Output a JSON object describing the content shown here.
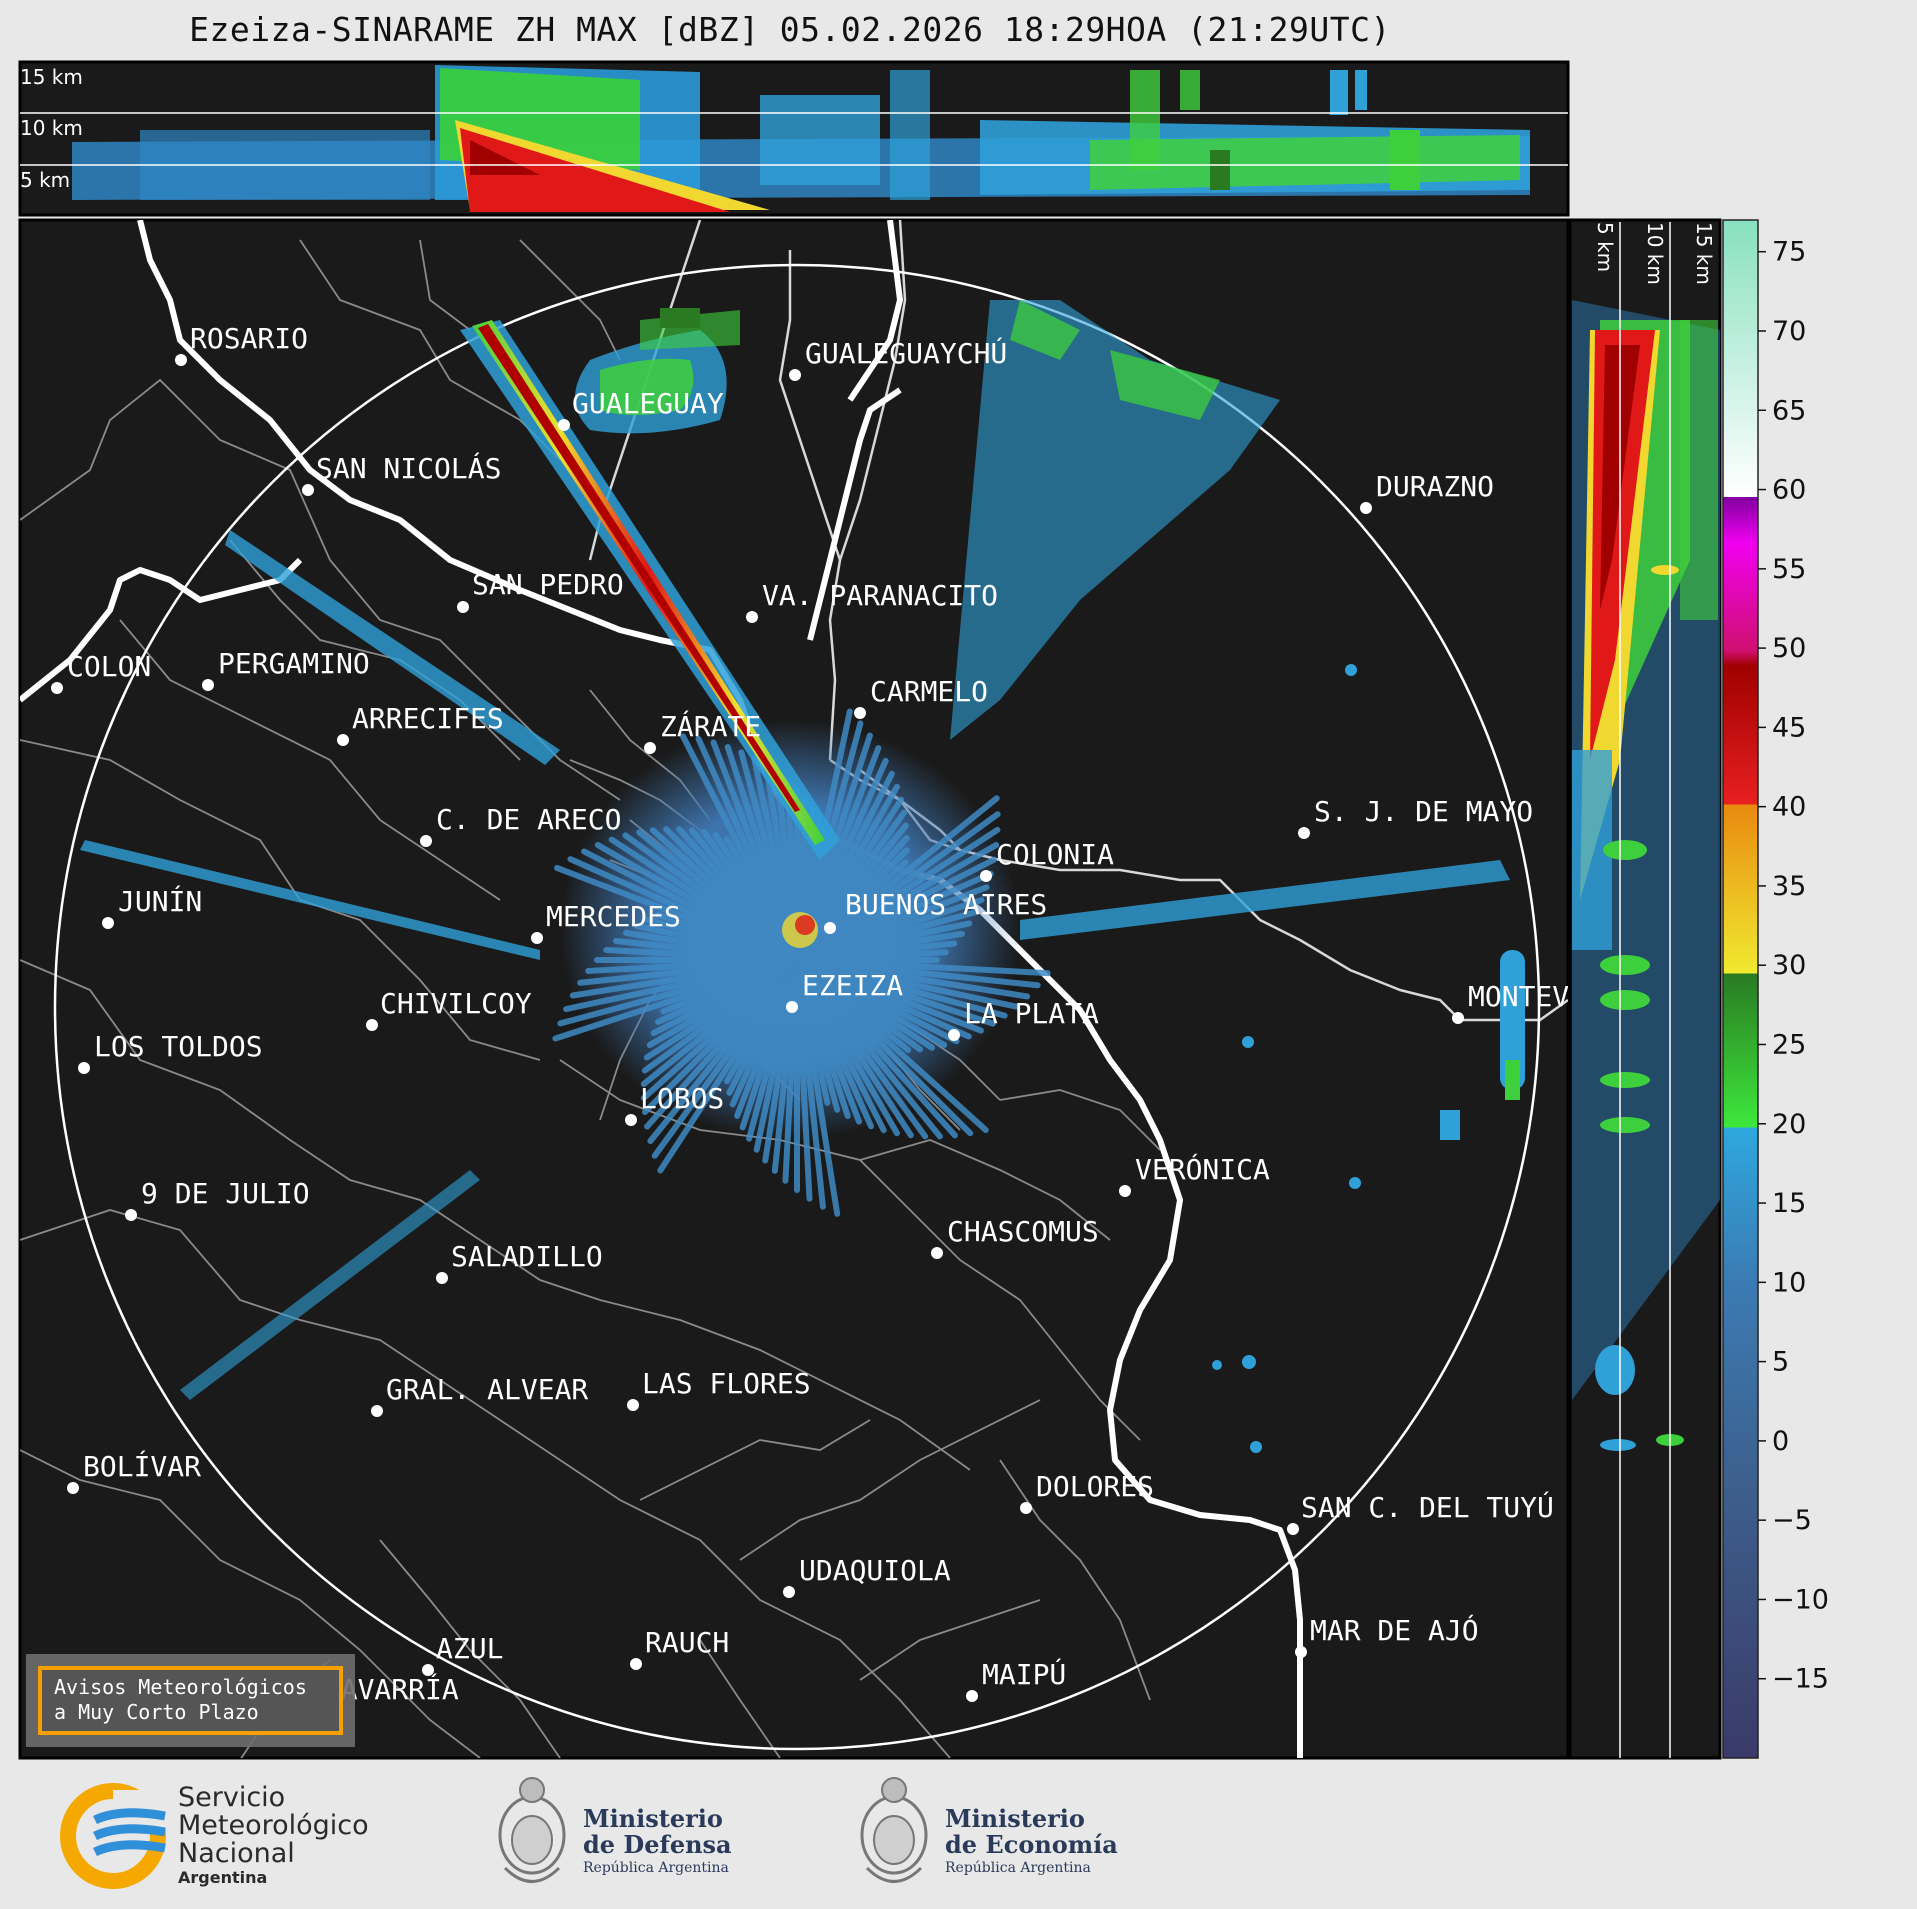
{
  "title": "Ezeiza-SINARAME ZH MAX [dBZ] 05.02.2026 18:29HOA (21:29UTC)",
  "top_panel": {
    "altitude_labels": [
      "15 km",
      "10 km",
      "5 km"
    ]
  },
  "side_panel": {
    "altitude_labels": [
      "5 km",
      "10 km",
      "15 km"
    ]
  },
  "colorbar": {
    "ticks": [
      "75",
      "70",
      "65",
      "60",
      "55",
      "50",
      "45",
      "40",
      "35",
      "30",
      "25",
      "20",
      "15",
      "10",
      "5",
      "0",
      "−5",
      "−10",
      "−15"
    ],
    "range": [
      -20,
      77
    ]
  },
  "map": {
    "radar_site": "EZEIZA",
    "cities": [
      {
        "name": "ROSARIO"
      },
      {
        "name": "GUALEGUAYCHÚ"
      },
      {
        "name": "GUALEGUAY"
      },
      {
        "name": "SAN NICOLÁS"
      },
      {
        "name": "DURAZNO"
      },
      {
        "name": "SAN PEDRO"
      },
      {
        "name": "VA. PARANACITO"
      },
      {
        "name": "COLON"
      },
      {
        "name": "PERGAMINO"
      },
      {
        "name": "CARMELO"
      },
      {
        "name": "ARRECIFES"
      },
      {
        "name": "ZÁRATE"
      },
      {
        "name": "S. J. DE MAYO"
      },
      {
        "name": "C. DE ARECO"
      },
      {
        "name": "COLONIA"
      },
      {
        "name": "JUNÍN"
      },
      {
        "name": "BUENOS AIRES"
      },
      {
        "name": "MERCEDES"
      },
      {
        "name": "MONTEVIDEO"
      },
      {
        "name": "EZEIZA"
      },
      {
        "name": "CHIVILCOY"
      },
      {
        "name": "LA PLATA"
      },
      {
        "name": "LOS TOLDOS"
      },
      {
        "name": "LOBOS"
      },
      {
        "name": "VERÓNICA"
      },
      {
        "name": "9 DE JULIO"
      },
      {
        "name": "CHASCOMUS"
      },
      {
        "name": "SALADILLO"
      },
      {
        "name": "GRAL. ALVEAR"
      },
      {
        "name": "LAS FLORES"
      },
      {
        "name": "BOLÍVAR"
      },
      {
        "name": "DOLORES"
      },
      {
        "name": "SAN C. DEL TUYÚ"
      },
      {
        "name": "UDAQUIOLA"
      },
      {
        "name": "AZUL"
      },
      {
        "name": "RAUCH"
      },
      {
        "name": "OLAVARRÍA"
      },
      {
        "name": "MAIPÚ"
      },
      {
        "name": "MAR DE AJÓ"
      }
    ]
  },
  "warning_box": {
    "line1": "Avisos Meteorológicos",
    "line2": "a Muy Corto Plazo"
  },
  "logos": {
    "smn": {
      "line1": "Servicio",
      "line2": "Meteorológico",
      "line3": "Nacional",
      "country": "Argentina"
    },
    "defensa": {
      "line1": "Ministerio",
      "line2": "de Defensa",
      "sub": "República Argentina"
    },
    "economia": {
      "line1": "Ministerio",
      "line2": "de Economía",
      "sub": "República Argentina"
    }
  },
  "colors": {
    "background": "#1a1a1a",
    "page": "#e8e8e8",
    "warning_border": "#f5a000",
    "smn_blue": "#2f8fd8",
    "smn_yellow": "#f5a800"
  }
}
